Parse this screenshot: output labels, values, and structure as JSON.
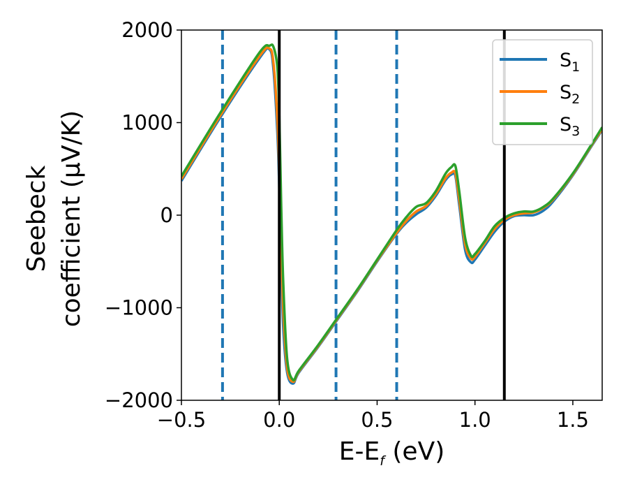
{
  "chart_data": {
    "type": "line",
    "title": "",
    "xlabel": "E-E_f (eV)",
    "xlabel_main": "E-E",
    "xlabel_sub": "f",
    "xlabel_unit": " (eV)",
    "ylabel_line1": "Seebeck",
    "ylabel_line2": "coefficient  (μV/K)",
    "xlim": [
      -0.5,
      1.65
    ],
    "ylim": [
      -2000,
      2000
    ],
    "xticks": [
      -0.5,
      0.0,
      0.5,
      1.0,
      1.5
    ],
    "xtick_labels": [
      "−0.5",
      "0.0",
      "0.5",
      "1.0",
      "1.5"
    ],
    "yticks": [
      -2000,
      -1000,
      0,
      1000,
      2000
    ],
    "ytick_labels": [
      "−2000",
      "−1000",
      "0",
      "1000",
      "2000"
    ],
    "grid": false,
    "legend_position": "top-right",
    "vertical_lines_solid": [
      0.0,
      1.15
    ],
    "vertical_lines_dashed": [
      -0.29,
      0.29,
      0.6
    ],
    "series": [
      {
        "name": "S1",
        "label_main": "S",
        "label_sub": "1",
        "color": "#1f77b4",
        "x": [
          -0.5,
          -0.3,
          -0.1,
          -0.05,
          -0.03,
          -0.01,
          0.0,
          0.01,
          0.02,
          0.04,
          0.07,
          0.1,
          0.2,
          0.3,
          0.4,
          0.5,
          0.6,
          0.65,
          0.7,
          0.75,
          0.8,
          0.85,
          0.88,
          0.9,
          0.92,
          0.95,
          0.98,
          1.0,
          1.05,
          1.1,
          1.15,
          1.2,
          1.25,
          1.3,
          1.35,
          1.4,
          1.5,
          1.6,
          1.65
        ],
        "y": [
          370,
          1060,
          1700,
          1790,
          1580,
          900,
          300,
          -500,
          -1200,
          -1700,
          -1820,
          -1700,
          -1420,
          -1120,
          -820,
          -500,
          -200,
          -80,
          10,
          80,
          210,
          380,
          440,
          420,
          100,
          -380,
          -510,
          -480,
          -330,
          -180,
          -70,
          -10,
          0,
          0,
          50,
          150,
          430,
          760,
          920
        ]
      },
      {
        "name": "S2",
        "label_main": "S",
        "label_sub": "2",
        "color": "#ff7f0e",
        "x": [
          -0.5,
          -0.3,
          -0.1,
          -0.05,
          -0.03,
          -0.01,
          0.0,
          0.01,
          0.02,
          0.04,
          0.07,
          0.1,
          0.2,
          0.3,
          0.4,
          0.5,
          0.6,
          0.65,
          0.7,
          0.75,
          0.8,
          0.85,
          0.88,
          0.9,
          0.92,
          0.95,
          0.98,
          1.0,
          1.05,
          1.1,
          1.15,
          1.2,
          1.25,
          1.3,
          1.35,
          1.4,
          1.5,
          1.6,
          1.65
        ],
        "y": [
          390,
          1080,
          1720,
          1800,
          1650,
          1050,
          450,
          -300,
          -1000,
          -1650,
          -1800,
          -1690,
          -1410,
          -1110,
          -810,
          -490,
          -190,
          -60,
          40,
          100,
          230,
          400,
          460,
          450,
          160,
          -320,
          -470,
          -450,
          -300,
          -150,
          -50,
          0,
          20,
          30,
          80,
          170,
          440,
          770,
          930
        ]
      },
      {
        "name": "S3",
        "label_main": "S",
        "label_sub": "3",
        "color": "#2ca02c",
        "x": [
          -0.5,
          -0.3,
          -0.1,
          -0.05,
          -0.03,
          -0.01,
          0.0,
          0.01,
          0.02,
          0.04,
          0.07,
          0.1,
          0.2,
          0.3,
          0.4,
          0.5,
          0.6,
          0.65,
          0.7,
          0.75,
          0.8,
          0.85,
          0.88,
          0.9,
          0.92,
          0.95,
          0.98,
          1.0,
          1.05,
          1.1,
          1.15,
          1.2,
          1.25,
          1.3,
          1.35,
          1.4,
          1.5,
          1.6,
          1.65
        ],
        "y": [
          420,
          1110,
          1760,
          1830,
          1820,
          1600,
          1100,
          100,
          -700,
          -1550,
          -1780,
          -1680,
          -1400,
          -1100,
          -800,
          -480,
          -160,
          -20,
          90,
          130,
          260,
          450,
          520,
          530,
          250,
          -250,
          -440,
          -420,
          -280,
          -120,
          -30,
          20,
          40,
          40,
          90,
          180,
          450,
          780,
          950
        ]
      }
    ]
  }
}
